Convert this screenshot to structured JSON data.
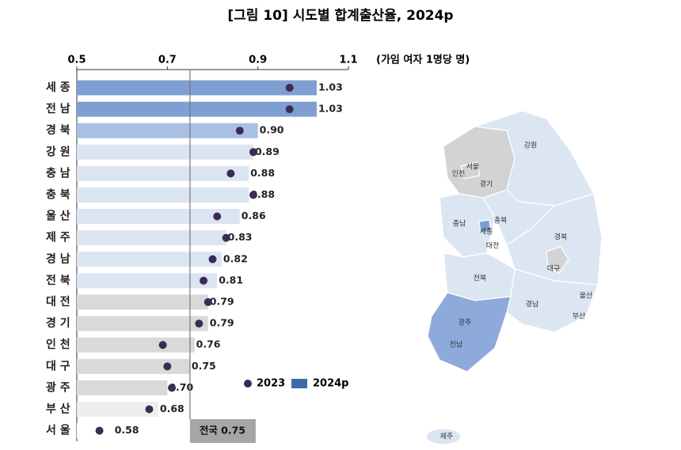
{
  "chart_data": {
    "type": "bar",
    "title": "[그림 10] 시도별 합계출산율, 2024p",
    "unit_label": "(가임 여자 1명당 명)",
    "categories": [
      "세 종",
      "전 남",
      "경 북",
      "강 원",
      "충 남",
      "충 북",
      "울 산",
      "제 주",
      "경 남",
      "전 북",
      "대 전",
      "경 기",
      "인 천",
      "대 구",
      "광 주",
      "부 산",
      "서 울"
    ],
    "series": [
      {
        "name": "2023",
        "color": "#3d2b56",
        "values": [
          0.97,
          0.97,
          0.86,
          0.89,
          0.84,
          0.89,
          0.81,
          0.83,
          0.8,
          0.78,
          0.79,
          0.77,
          0.69,
          0.7,
          0.71,
          0.66,
          0.55
        ]
      },
      {
        "name": "2024p",
        "color": "#3c6ca8",
        "values": [
          1.03,
          1.03,
          0.9,
          0.89,
          0.88,
          0.88,
          0.86,
          0.83,
          0.82,
          0.81,
          0.79,
          0.79,
          0.76,
          0.75,
          0.7,
          0.68,
          0.58
        ],
        "value_labels": [
          "1.03",
          "1.03",
          "0.90",
          "0.89",
          "0.88",
          "0.88",
          "0.86",
          "0.83",
          "0.82",
          "0.81",
          "0.79",
          "0.79",
          "0.76",
          "0.75",
          "0.70",
          "0.68",
          "0.58"
        ],
        "bar_colors": [
          "#7f9fd3",
          "#7f9fd3",
          "#a9bfe4",
          "#dbe5f2",
          "#dbe5f2",
          "#dbe5f2",
          "#dbe5f2",
          "#dbe5f2",
          "#dbe5f2",
          "#dbe5f2",
          "#d9d9d9",
          "#d9d9d9",
          "#d9d9d9",
          "#d9d9d9",
          "#d9d9d9",
          "#eeeeee",
          "#ffffff"
        ]
      }
    ],
    "xlim": [
      0.5,
      1.1
    ],
    "xticks": [
      0.5,
      0.7,
      0.9,
      1.1
    ],
    "reference_line": 0.75,
    "annotation": "전국 0.75"
  },
  "map": {
    "labels": [
      "강원",
      "서울",
      "인천",
      "경기",
      "충남",
      "충북",
      "세종",
      "대전",
      "경북",
      "대구",
      "전북",
      "울산",
      "경남",
      "부산",
      "광주",
      "전남",
      "제주"
    ]
  }
}
